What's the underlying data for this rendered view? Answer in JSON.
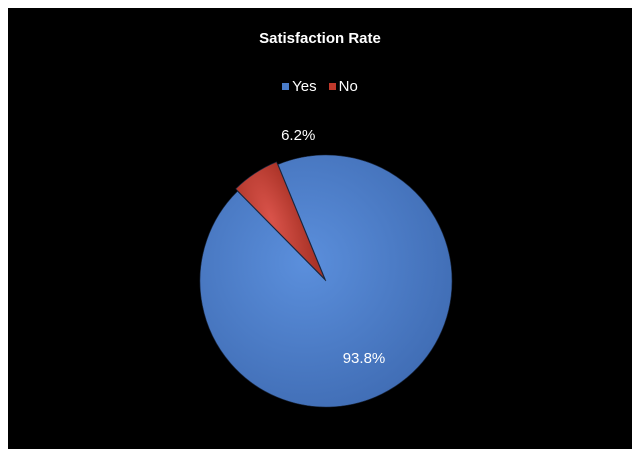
{
  "chart_data": {
    "type": "pie",
    "title": "Satisfaction Rate",
    "legend_position": "top",
    "slices": [
      {
        "label": "Yes",
        "value": 93.8,
        "display": "93.8%",
        "color": "#4a7cc9",
        "label_color": "#ffffff"
      },
      {
        "label": "No",
        "value": 6.2,
        "display": "6.2%",
        "color": "#c0392b",
        "label_color": "#ffffff"
      }
    ],
    "background": "#000000"
  }
}
